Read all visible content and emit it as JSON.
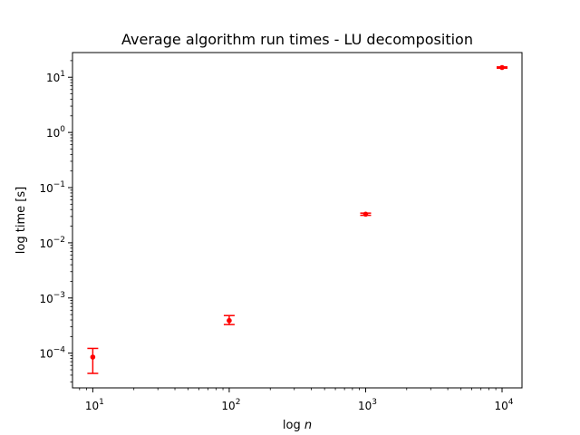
{
  "chart_data": {
    "type": "scatter",
    "title": "Average algorithm run times - LU decomposition",
    "xlabel_prefix": "log ",
    "xlabel_var": "n",
    "ylabel": "log time [s]",
    "xscale": "log",
    "yscale": "log",
    "xlim": [
      7.1,
      14000
    ],
    "ylim": [
      2.35e-05,
      28
    ],
    "grid": false,
    "x_ticks": [
      {
        "value": 10,
        "base": "10",
        "exp": "1"
      },
      {
        "value": 100,
        "base": "10",
        "exp": "2"
      },
      {
        "value": 1000,
        "base": "10",
        "exp": "3"
      },
      {
        "value": 10000,
        "base": "10",
        "exp": "4"
      }
    ],
    "y_ticks": [
      {
        "value": 0.0001,
        "base": "10",
        "exp": "−4"
      },
      {
        "value": 0.001,
        "base": "10",
        "exp": "−3"
      },
      {
        "value": 0.01,
        "base": "10",
        "exp": "−2"
      },
      {
        "value": 0.1,
        "base": "10",
        "exp": "−1"
      },
      {
        "value": 1,
        "base": "10",
        "exp": "0"
      },
      {
        "value": 10,
        "base": "10",
        "exp": "1"
      }
    ],
    "points": [
      {
        "x": 10,
        "y": 8.5e-05,
        "err_low": 4.3e-05,
        "err_high": 0.000122
      },
      {
        "x": 100,
        "y": 0.00039,
        "err_low": 0.00033,
        "err_high": 0.00048
      },
      {
        "x": 1000,
        "y": 0.033,
        "err_low": 0.0315,
        "err_high": 0.0345
      },
      {
        "x": 10000,
        "y": 15,
        "err_low": 14.6,
        "err_high": 15.4
      }
    ],
    "marker_color": "#ff0000",
    "axis_color": "#000000"
  }
}
